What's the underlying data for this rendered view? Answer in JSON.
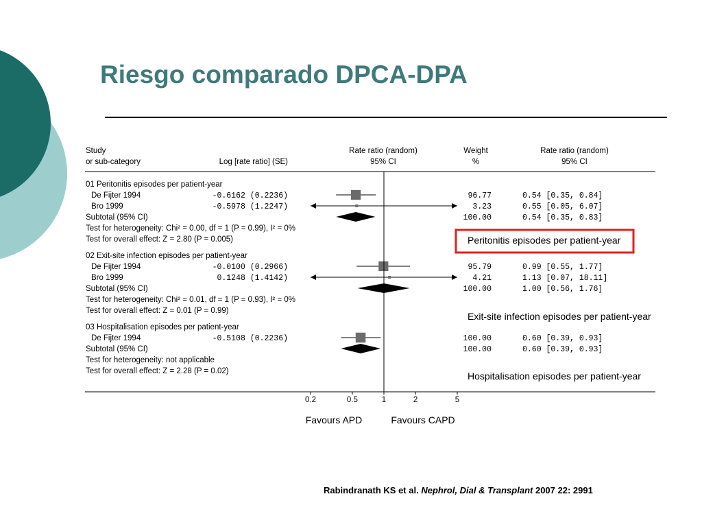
{
  "slide": {
    "title": "Riesgo comparado DPCA-DPA",
    "citation": {
      "authors": "Rabindranath KS et al.",
      "journal": "Nephrol, Dial & Transplant",
      "details": "2007 22: 2991"
    }
  },
  "colors": {
    "title": "#3f7a7a",
    "deco_dark": "#1b6b67",
    "deco_light": "#9ecdcd",
    "highlight_box": "#e02020",
    "markers": "#6b6b6b"
  },
  "chart_data": {
    "type": "forest",
    "headers": {
      "study_line1": "Study",
      "study_line2": "or sub-category",
      "logrr": "Log [rate ratio] (SE)",
      "rr_line1": "Rate ratio (random)",
      "rr_line2": "95% CI",
      "weight_line1": "Weight",
      "weight_line2": "%",
      "ci_line1": "Rate ratio (random)",
      "ci_line2": "95% CI"
    },
    "scale": "log",
    "xlim": [
      0.2,
      5
    ],
    "reference_line": 1,
    "ticks": [
      {
        "value": 0.2,
        "label": "0.2"
      },
      {
        "value": 0.5,
        "label": "0.5"
      },
      {
        "value": 1,
        "label": "1"
      },
      {
        "value": 2,
        "label": "2"
      },
      {
        "value": 5,
        "label": "5"
      }
    ],
    "favours_left": "Favours APD",
    "favours_right": "Favours CAPD",
    "groups": [
      {
        "title": "01 Peritonitis episodes per patient-year",
        "annotation": "Peritonitis episodes per patient-year",
        "annotation_boxed": true,
        "studies": [
          {
            "name": "De Fijter 1994",
            "logrr": "-0.6162 (0.2236)",
            "weight": "96.77",
            "ci_text": "0.54 [0.35, 0.84]",
            "rr": 0.54,
            "lo": 0.35,
            "hi": 0.84,
            "w": 96.77
          },
          {
            "name": "Bro 1999",
            "logrr": "-0.5978 (1.2247)",
            "weight": "3.23",
            "ci_text": "0.55 [0.05, 6.07]",
            "rr": 0.55,
            "lo": 0.05,
            "hi": 6.07,
            "w": 3.23
          }
        ],
        "subtotal": {
          "label": "Subtotal (95% CI)",
          "weight": "100.00",
          "ci_text": "0.54 [0.35, 0.83]",
          "rr": 0.54,
          "lo": 0.35,
          "hi": 0.83
        },
        "heterogeneity": "Test for heterogeneity: Chi² = 0.00, df = 1 (P = 0.99), I² = 0%",
        "overall": "Test for overall effect: Z = 2.80 (P = 0.005)"
      },
      {
        "title": "02 Exit-site infection episodes per patient-year",
        "annotation": "Exit-site infection episodes per patient-year",
        "annotation_boxed": false,
        "studies": [
          {
            "name": "De Fijter 1994",
            "logrr": "-0.0100 (0.2966)",
            "weight": "95.79",
            "ci_text": "0.99 [0.55, 1.77]",
            "rr": 0.99,
            "lo": 0.55,
            "hi": 1.77,
            "w": 95.79
          },
          {
            "name": "Bro 1999",
            "logrr": "0.1248 (1.4142)",
            "weight": "4.21",
            "ci_text": "1.13 [0.07, 18.11]",
            "rr": 1.13,
            "lo": 0.07,
            "hi": 18.11,
            "w": 4.21
          }
        ],
        "subtotal": {
          "label": "Subtotal (95% CI)",
          "weight": "100.00",
          "ci_text": "1.00 [0.56, 1.76]",
          "rr": 1.0,
          "lo": 0.56,
          "hi": 1.76
        },
        "heterogeneity": "Test for heterogeneity: Chi² = 0.01, df = 1 (P = 0.93), I² = 0%",
        "overall": "Test for overall effect: Z = 0.01 (P = 0.99)"
      },
      {
        "title": "03 Hospitalisation episodes per patient-year",
        "annotation": "Hospitalisation  episodes per patient-year",
        "annotation_boxed": false,
        "studies": [
          {
            "name": "De Fijter 1994",
            "logrr": "-0.5108 (0.2236)",
            "weight": "100.00",
            "ci_text": "0.60 [0.39, 0.93]",
            "rr": 0.6,
            "lo": 0.39,
            "hi": 0.93,
            "w": 100.0
          }
        ],
        "subtotal": {
          "label": "Subtotal (95% CI)",
          "weight": "100.00",
          "ci_text": "0.60 [0.39, 0.93]",
          "rr": 0.6,
          "lo": 0.39,
          "hi": 0.93
        },
        "heterogeneity": "Test for heterogeneity: not applicable",
        "overall": "Test for overall effect: Z = 2.28 (P = 0.02)"
      }
    ]
  }
}
